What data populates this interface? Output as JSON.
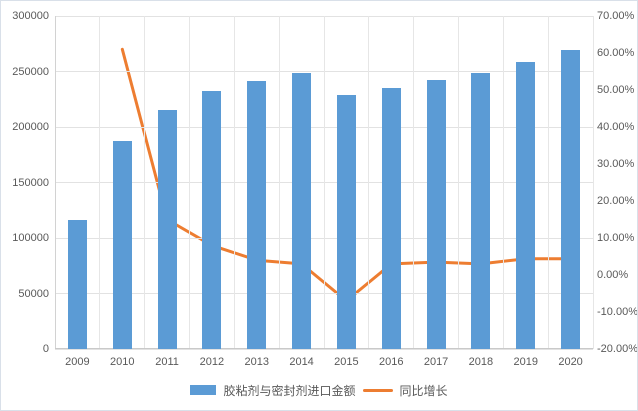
{
  "chart_data": {
    "type": "bar",
    "subtype": "combo-bar-line",
    "title": "",
    "categories": [
      "2009",
      "2010",
      "2011",
      "2012",
      "2013",
      "2014",
      "2015",
      "2016",
      "2017",
      "2018",
      "2019",
      "2020"
    ],
    "series": [
      {
        "name": "胶粘剂与密封剂进口金额",
        "type": "bar",
        "axis": "left",
        "color": "#5B9BD5",
        "values": [
          116500,
          187500,
          215500,
          232500,
          241500,
          248500,
          229000,
          235500,
          242500,
          248500,
          258500,
          269000
        ]
      },
      {
        "name": "同比增长",
        "type": "line",
        "axis": "right",
        "color": "#ED7D31",
        "values": [
          null,
          61,
          15,
          8,
          4,
          3,
          -7,
          3,
          3.5,
          3,
          4.4,
          4.4
        ]
      }
    ],
    "left_axis": {
      "min": 0,
      "max": 300000,
      "step": 50000,
      "tick_labels": [
        "0",
        "50000",
        "100000",
        "150000",
        "200000",
        "250000",
        "300000"
      ]
    },
    "right_axis": {
      "min": -20,
      "max": 70,
      "step": 10,
      "tick_labels": [
        "-20.00%",
        "-10.00%",
        "0.00%",
        "10.00%",
        "20.00%",
        "30.00%",
        "40.00%",
        "50.00%",
        "60.00%",
        "70.00%"
      ]
    },
    "legend_position": "bottom",
    "grid": "both",
    "grid_color": "#e2e2e2",
    "text_color": "#595959"
  }
}
